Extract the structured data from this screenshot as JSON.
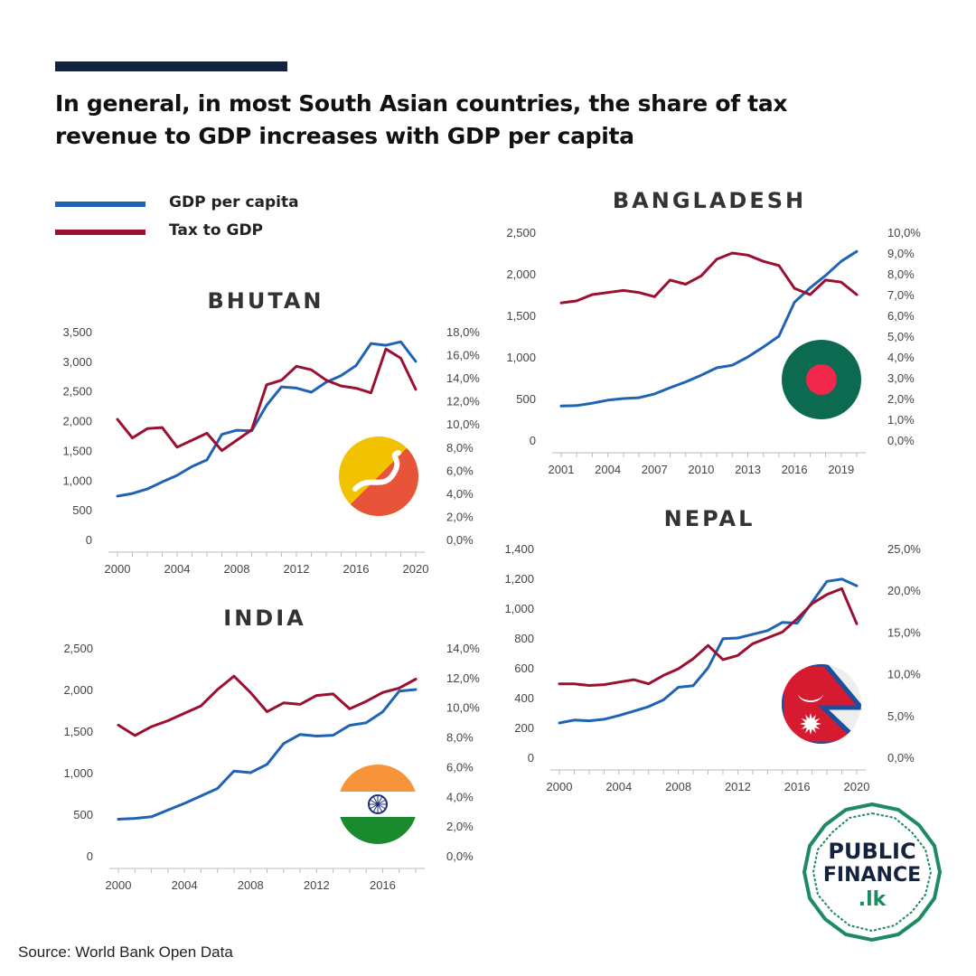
{
  "header": {
    "title": "In general, in most South Asian countries, the share of tax revenue to GDP increases with GDP per capita"
  },
  "legend": [
    {
      "label": "GDP per capita",
      "color": "#1f63b5"
    },
    {
      "label": "Tax to GDP",
      "color": "#9b1030"
    }
  ],
  "source": "Source: World Bank Open Data",
  "logo": {
    "line1": "PUBLIC",
    "line2": "FINANCE",
    "line3": ".lk",
    "color": "#1d8a5f"
  },
  "colors": {
    "gdp": "#1f63b5",
    "tax": "#9b1030",
    "accent": "#13233f"
  },
  "chart_data": [
    {
      "type": "line",
      "title": "BHUTAN",
      "flag": "bhutan-flag",
      "x": [
        2000,
        2001,
        2002,
        2003,
        2004,
        2005,
        2006,
        2007,
        2008,
        2009,
        2010,
        2011,
        2012,
        2013,
        2014,
        2015,
        2016,
        2017,
        2018,
        2019,
        2020
      ],
      "xticks": [
        2000,
        2004,
        2008,
        2012,
        2016,
        2020
      ],
      "xticklabels": [
        "2000",
        "2004",
        "2008",
        "2012",
        "2016",
        "2020"
      ],
      "xlim": [
        2000,
        2020
      ],
      "ylim": [
        0,
        3500
      ],
      "yticklabels": [
        "0",
        "500",
        "1,000",
        "1,500",
        "2,000",
        "2,500",
        "3,000",
        "3,500"
      ],
      "y2lim": [
        0,
        18
      ],
      "y2ticklabels": [
        "0,0%",
        "2,0%",
        "4,0%",
        "6,0%",
        "8,0%",
        "10,0%",
        "12,0%",
        "14,0%",
        "16,0%",
        "18,0%"
      ],
      "series": [
        {
          "name": "GDP per capita",
          "axis": "left",
          "values": [
            730,
            775,
            850,
            970,
            1080,
            1230,
            1340,
            1770,
            1840,
            1830,
            2260,
            2570,
            2550,
            2480,
            2650,
            2760,
            2930,
            3300,
            3270,
            3330,
            3000
          ]
        },
        {
          "name": "Tax to GDP",
          "axis": "right",
          "values": [
            10.4,
            8.8,
            9.6,
            9.7,
            8.0,
            8.6,
            9.2,
            7.7,
            8.6,
            9.5,
            13.4,
            13.8,
            15.0,
            14.7,
            13.8,
            13.3,
            13.1,
            12.7,
            16.5,
            15.7,
            13.0
          ]
        }
      ]
    },
    {
      "type": "line",
      "title": "BANGLADESH",
      "flag": "bangladesh-flag",
      "x": [
        2001,
        2002,
        2003,
        2004,
        2005,
        2006,
        2007,
        2008,
        2009,
        2010,
        2011,
        2012,
        2013,
        2014,
        2015,
        2016,
        2017,
        2018,
        2019,
        2020
      ],
      "xticks": [
        2001,
        2004,
        2007,
        2010,
        2013,
        2016,
        2019
      ],
      "xticklabels": [
        "2001",
        "2004",
        "2007",
        "2010",
        "2013",
        "2016",
        "2019"
      ],
      "xlim": [
        2001,
        2020
      ],
      "ylim": [
        0,
        2500
      ],
      "yticklabels": [
        "0",
        "500",
        "1,000",
        "1,500",
        "2,000",
        "2,500"
      ],
      "y2lim": [
        0,
        10
      ],
      "y2ticklabels": [
        "0,0%",
        "1,0%",
        "2,0%",
        "3,0%",
        "4,0%",
        "5,0%",
        "6,0%",
        "7,0%",
        "8,0%",
        "9,0%",
        "10,0%"
      ],
      "series": [
        {
          "name": "GDP per capita",
          "axis": "left",
          "values": [
            410,
            415,
            445,
            480,
            500,
            510,
            555,
            630,
            700,
            780,
            870,
            900,
            1000,
            1120,
            1250,
            1660,
            1830,
            1980,
            2150,
            2270
          ]
        },
        {
          "name": "Tax to GDP",
          "axis": "right",
          "values": [
            6.6,
            6.7,
            7.0,
            7.1,
            7.2,
            7.1,
            6.9,
            7.7,
            7.5,
            7.9,
            8.7,
            9.0,
            8.9,
            8.6,
            8.4,
            7.3,
            7.0,
            7.7,
            7.6,
            7.0
          ]
        }
      ]
    },
    {
      "type": "line",
      "title": "INDIA",
      "flag": "india-flag",
      "x": [
        2000,
        2001,
        2002,
        2003,
        2004,
        2005,
        2006,
        2007,
        2008,
        2009,
        2010,
        2011,
        2012,
        2013,
        2014,
        2015,
        2016,
        2017,
        2018
      ],
      "xticks": [
        2000,
        2004,
        2008,
        2012,
        2016
      ],
      "xticklabels": [
        "2000",
        "2004",
        "2008",
        "2012",
        "2016"
      ],
      "xlim": [
        2000,
        2018
      ],
      "ylim": [
        0,
        2500
      ],
      "yticklabels": [
        "0",
        "500",
        "1,000",
        "1,500",
        "2,000",
        "2,500"
      ],
      "y2lim": [
        0,
        14
      ],
      "y2ticklabels": [
        "0,0%",
        "2,0%",
        "4,0%",
        "6,0%",
        "8,0%",
        "10,0%",
        "12,0%",
        "14,0%"
      ],
      "series": [
        {
          "name": "GDP per capita",
          "axis": "left",
          "values": [
            440,
            450,
            470,
            550,
            630,
            720,
            810,
            1020,
            1000,
            1100,
            1350,
            1460,
            1440,
            1450,
            1570,
            1600,
            1730,
            1980,
            2000
          ]
        },
        {
          "name": "Tax to GDP",
          "axis": "right",
          "values": [
            8.8,
            8.1,
            8.7,
            9.1,
            9.6,
            10.1,
            11.2,
            12.1,
            11.0,
            9.7,
            10.3,
            10.2,
            10.8,
            10.9,
            9.9,
            10.4,
            11.0,
            11.3,
            11.9
          ]
        }
      ]
    },
    {
      "type": "line",
      "title": "NEPAL",
      "flag": "nepal-flag",
      "x": [
        2000,
        2001,
        2002,
        2003,
        2004,
        2005,
        2006,
        2007,
        2008,
        2009,
        2010,
        2011,
        2012,
        2013,
        2014,
        2015,
        2016,
        2017,
        2018,
        2019,
        2020
      ],
      "xticks": [
        2000,
        2004,
        2008,
        2012,
        2016,
        2020
      ],
      "xticklabels": [
        "2000",
        "2004",
        "2008",
        "2012",
        "2016",
        "2020"
      ],
      "xlim": [
        2000,
        2020
      ],
      "ylim": [
        0,
        1400
      ],
      "yticklabels": [
        "0",
        "200",
        "400",
        "600",
        "800",
        "1,000",
        "1,200",
        "1,400"
      ],
      "y2lim": [
        0,
        25
      ],
      "y2ticklabels": [
        "0,0%",
        "5,0%",
        "10,0%",
        "15,0%",
        "20,0%",
        "25,0%"
      ],
      "series": [
        {
          "name": "GDP per capita",
          "axis": "left",
          "values": [
            230,
            250,
            245,
            255,
            280,
            310,
            340,
            385,
            470,
            480,
            600,
            795,
            800,
            825,
            850,
            905,
            900,
            1040,
            1180,
            1195,
            1150
          ]
        },
        {
          "name": "Tax to GDP",
          "axis": "right",
          "values": [
            8.8,
            8.8,
            8.6,
            8.7,
            9.0,
            9.3,
            8.8,
            9.8,
            10.6,
            11.8,
            13.4,
            11.7,
            12.2,
            13.6,
            14.3,
            15.0,
            16.6,
            18.4,
            19.5,
            20.2,
            16.0
          ]
        }
      ]
    }
  ]
}
